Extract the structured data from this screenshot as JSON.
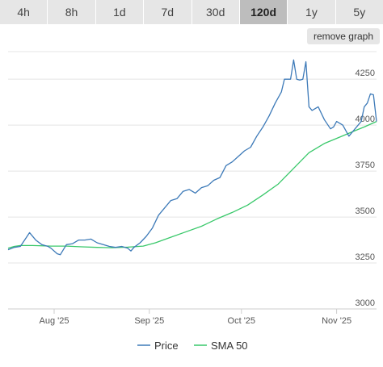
{
  "range_tabs": [
    {
      "label": "4h",
      "active": false
    },
    {
      "label": "8h",
      "active": false
    },
    {
      "label": "1d",
      "active": false
    },
    {
      "label": "7d",
      "active": false
    },
    {
      "label": "30d",
      "active": false
    },
    {
      "label": "120d",
      "active": true
    },
    {
      "label": "1y",
      "active": false
    },
    {
      "label": "5y",
      "active": false
    }
  ],
  "remove_graph_label": "remove graph",
  "colors": {
    "price": "#3d7ab8",
    "sma": "#39c86a",
    "grid": "#e4e4e4",
    "axis": "#cccccc"
  },
  "chart_data": {
    "type": "line",
    "title": "",
    "xlabel": "",
    "ylabel": "",
    "xlim": [
      "2025-07-17",
      "2025-11-14"
    ],
    "ylim": [
      3000,
      4400
    ],
    "yticks": [
      3000,
      3250,
      3500,
      3750,
      4000,
      4250
    ],
    "y_axis_side": "right",
    "grid": "horizontal",
    "legend_position": "bottom",
    "x_ticks": [
      {
        "date": "2025-08-01",
        "label": "Aug '25"
      },
      {
        "date": "2025-09-01",
        "label": "Sep '25"
      },
      {
        "date": "2025-10-01",
        "label": "Oct '25"
      },
      {
        "date": "2025-11-01",
        "label": "Nov '25"
      }
    ],
    "series": [
      {
        "name": "Price",
        "points": [
          [
            "2025-07-17",
            3322
          ],
          [
            "2025-07-19",
            3335
          ],
          [
            "2025-07-21",
            3340
          ],
          [
            "2025-07-23",
            3390
          ],
          [
            "2025-07-24",
            3415
          ],
          [
            "2025-07-26",
            3375
          ],
          [
            "2025-07-28",
            3350
          ],
          [
            "2025-07-30",
            3340
          ],
          [
            "2025-07-31",
            3330
          ],
          [
            "2025-08-02",
            3300
          ],
          [
            "2025-08-03",
            3295
          ],
          [
            "2025-08-05",
            3350
          ],
          [
            "2025-08-07",
            3355
          ],
          [
            "2025-08-09",
            3375
          ],
          [
            "2025-08-11",
            3375
          ],
          [
            "2025-08-13",
            3380
          ],
          [
            "2025-08-15",
            3360
          ],
          [
            "2025-08-17",
            3350
          ],
          [
            "2025-08-19",
            3340
          ],
          [
            "2025-08-21",
            3335
          ],
          [
            "2025-08-23",
            3340
          ],
          [
            "2025-08-25",
            3330
          ],
          [
            "2025-08-26",
            3315
          ],
          [
            "2025-08-27",
            3335
          ],
          [
            "2025-08-29",
            3360
          ],
          [
            "2025-08-31",
            3395
          ],
          [
            "2025-09-02",
            3440
          ],
          [
            "2025-09-04",
            3510
          ],
          [
            "2025-09-06",
            3550
          ],
          [
            "2025-09-08",
            3590
          ],
          [
            "2025-09-10",
            3600
          ],
          [
            "2025-09-12",
            3640
          ],
          [
            "2025-09-14",
            3650
          ],
          [
            "2025-09-16",
            3630
          ],
          [
            "2025-09-18",
            3660
          ],
          [
            "2025-09-20",
            3670
          ],
          [
            "2025-09-22",
            3700
          ],
          [
            "2025-09-24",
            3715
          ],
          [
            "2025-09-26",
            3780
          ],
          [
            "2025-09-28",
            3800
          ],
          [
            "2025-09-30",
            3830
          ],
          [
            "2025-10-02",
            3860
          ],
          [
            "2025-10-04",
            3880
          ],
          [
            "2025-10-06",
            3940
          ],
          [
            "2025-10-08",
            3990
          ],
          [
            "2025-10-10",
            4050
          ],
          [
            "2025-10-12",
            4120
          ],
          [
            "2025-10-14",
            4180
          ],
          [
            "2025-10-15",
            4250
          ],
          [
            "2025-10-17",
            4250
          ],
          [
            "2025-10-18",
            4355
          ],
          [
            "2025-10-19",
            4250
          ],
          [
            "2025-10-20",
            4245
          ],
          [
            "2025-10-21",
            4250
          ],
          [
            "2025-10-22",
            4345
          ],
          [
            "2025-10-23",
            4100
          ],
          [
            "2025-10-24",
            4080
          ],
          [
            "2025-10-26",
            4100
          ],
          [
            "2025-10-28",
            4030
          ],
          [
            "2025-10-30",
            3980
          ],
          [
            "2025-10-31",
            3990
          ],
          [
            "2025-11-01",
            4020
          ],
          [
            "2025-11-03",
            4000
          ],
          [
            "2025-11-05",
            3940
          ],
          [
            "2025-11-07",
            3980
          ],
          [
            "2025-11-09",
            4020
          ],
          [
            "2025-11-10",
            4100
          ],
          [
            "2025-11-11",
            4120
          ],
          [
            "2025-11-12",
            4170
          ],
          [
            "2025-11-13",
            4165
          ],
          [
            "2025-11-14",
            4020
          ]
        ]
      },
      {
        "name": "SMA 50",
        "points": [
          [
            "2025-07-17",
            3330
          ],
          [
            "2025-07-19",
            3340
          ],
          [
            "2025-07-21",
            3345
          ],
          [
            "2025-07-25",
            3345
          ],
          [
            "2025-07-31",
            3342
          ],
          [
            "2025-08-05",
            3342
          ],
          [
            "2025-08-10",
            3338
          ],
          [
            "2025-08-15",
            3335
          ],
          [
            "2025-08-20",
            3333
          ],
          [
            "2025-08-25",
            3336
          ],
          [
            "2025-08-30",
            3342
          ],
          [
            "2025-09-03",
            3360
          ],
          [
            "2025-09-08",
            3390
          ],
          [
            "2025-09-13",
            3420
          ],
          [
            "2025-09-18",
            3450
          ],
          [
            "2025-09-23",
            3490
          ],
          [
            "2025-09-28",
            3525
          ],
          [
            "2025-10-03",
            3565
          ],
          [
            "2025-10-08",
            3620
          ],
          [
            "2025-10-13",
            3680
          ],
          [
            "2025-10-18",
            3765
          ],
          [
            "2025-10-23",
            3850
          ],
          [
            "2025-10-28",
            3900
          ],
          [
            "2025-11-02",
            3935
          ],
          [
            "2025-11-07",
            3970
          ],
          [
            "2025-11-10",
            3990
          ],
          [
            "2025-11-14",
            4020
          ]
        ]
      }
    ]
  }
}
